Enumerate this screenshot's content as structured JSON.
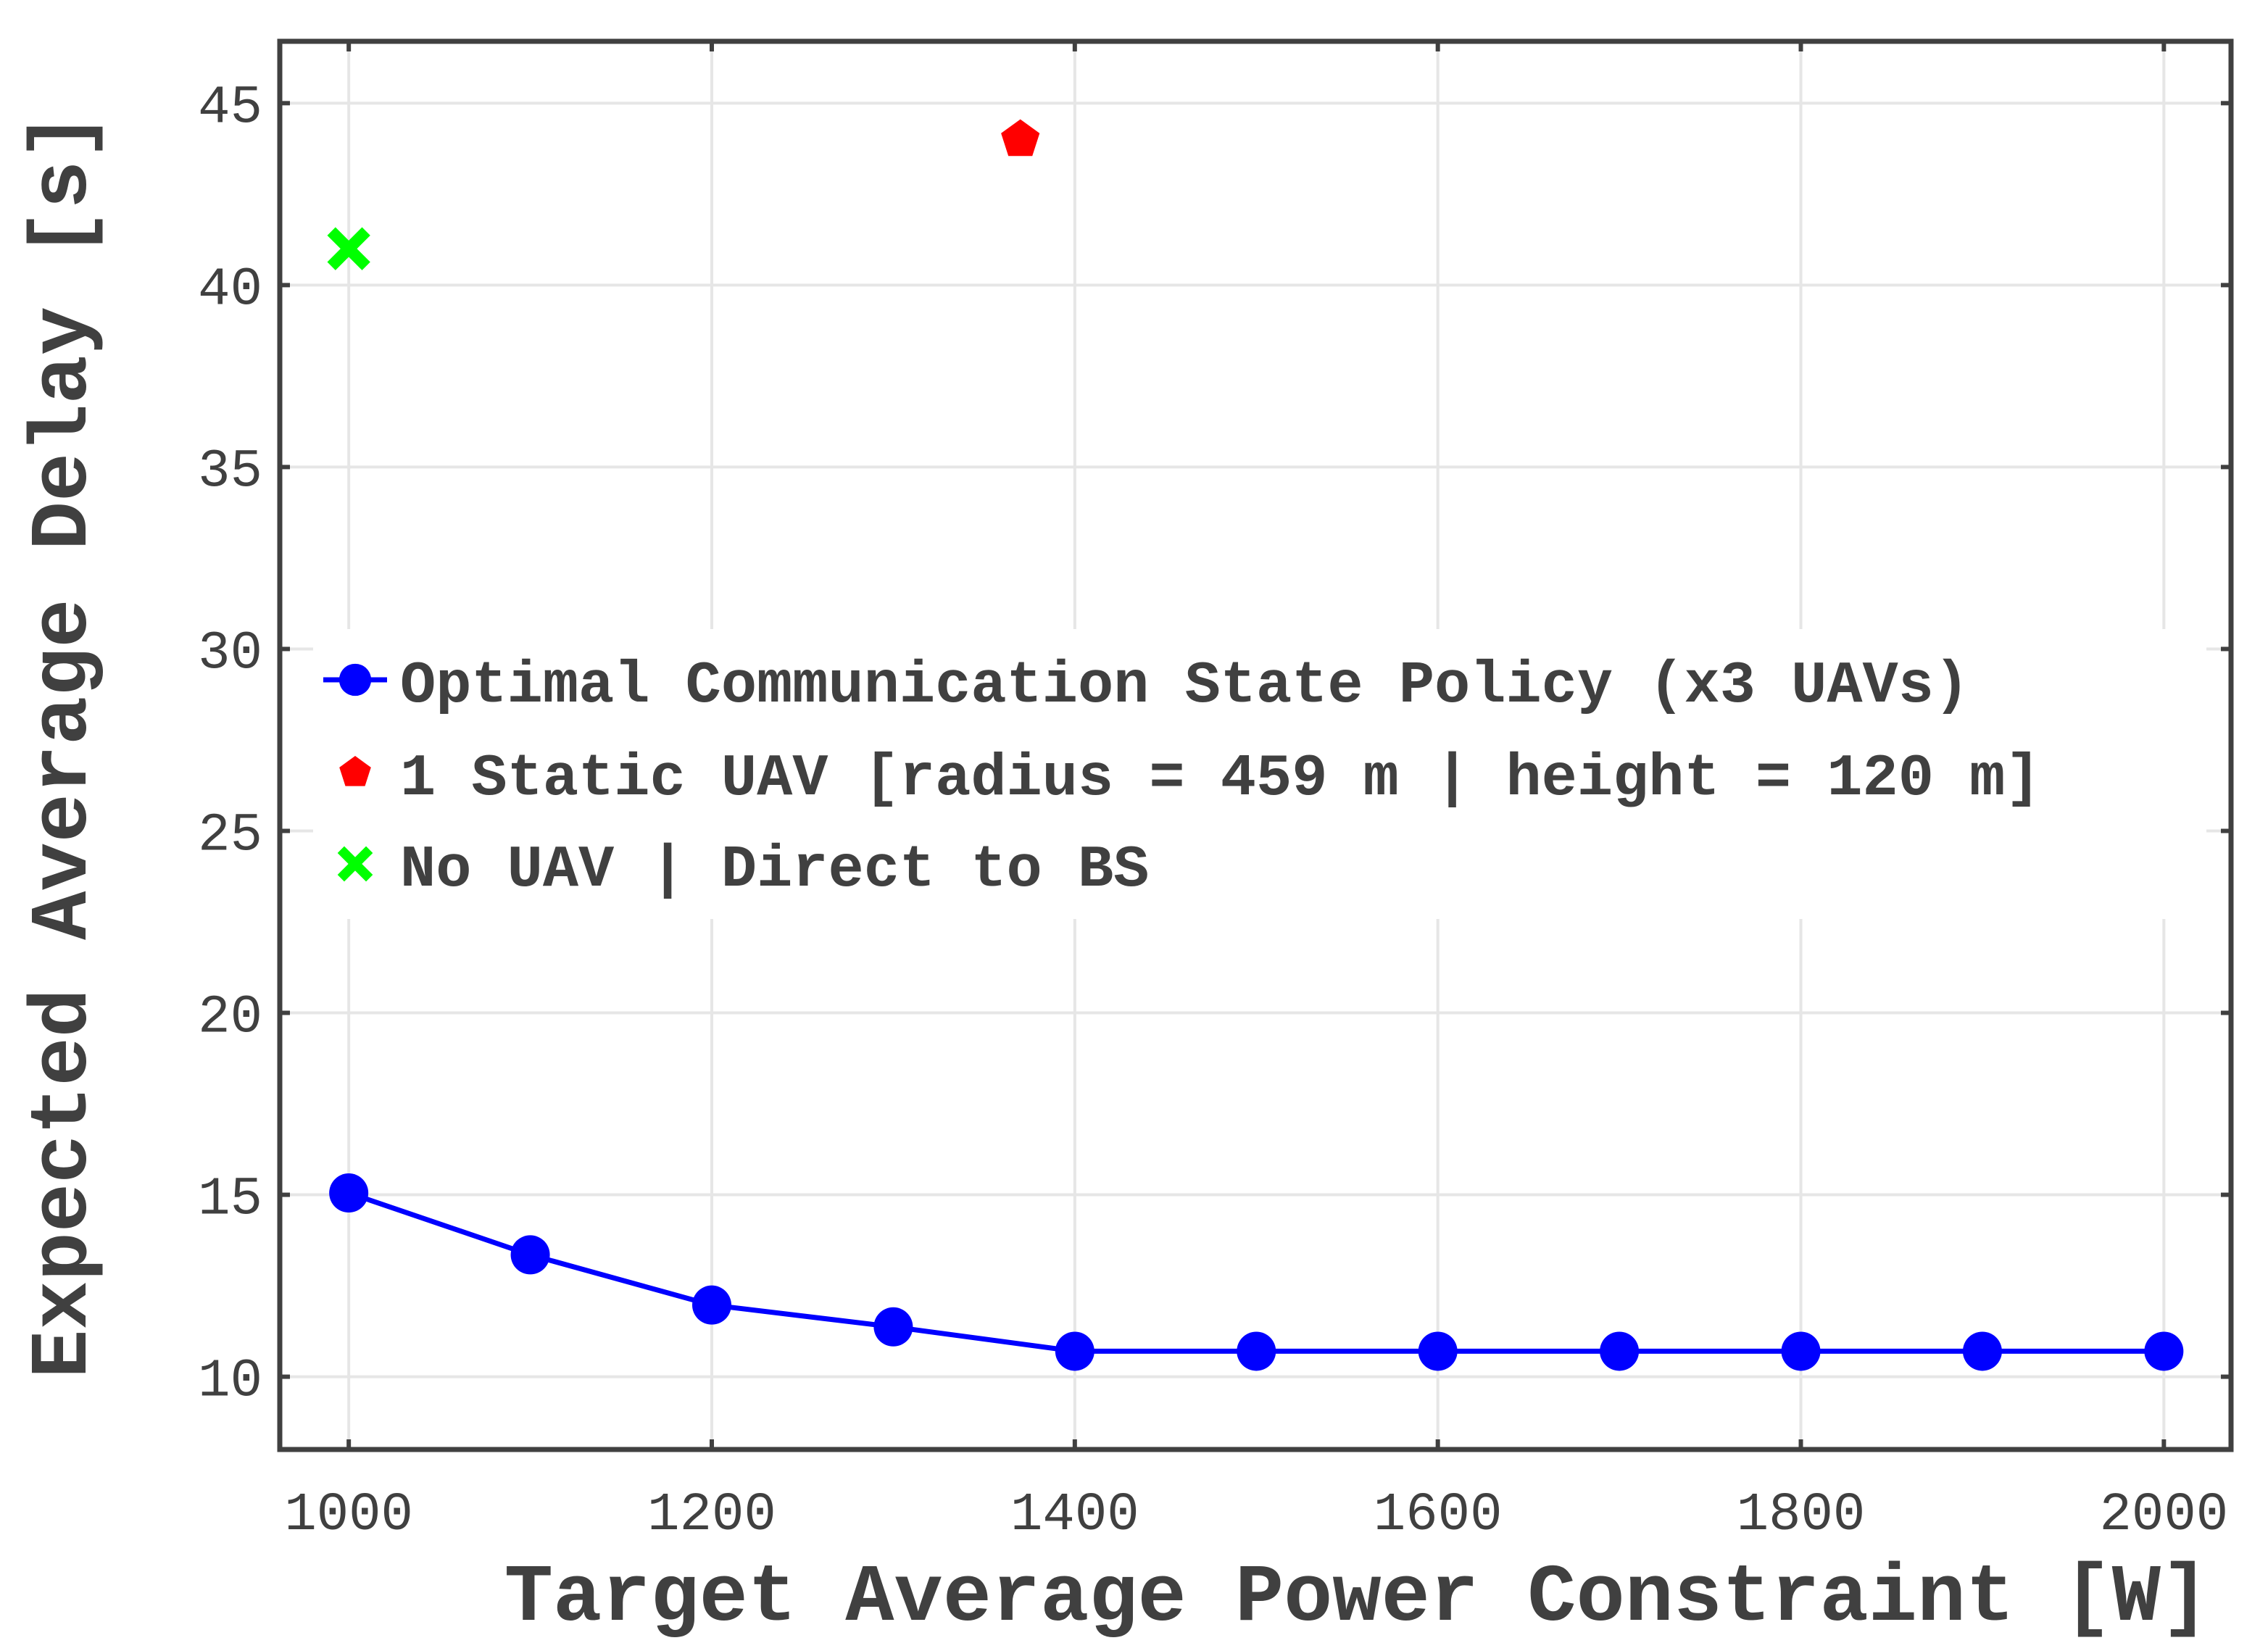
{
  "chart_data": {
    "type": "line",
    "xlabel": "Target Average Power Constraint [W]",
    "ylabel": "Expected Average Delay [s]",
    "xlim": [
      962,
      2037
    ],
    "ylim": [
      8,
      46.7
    ],
    "xticks": [
      1000,
      1200,
      1400,
      1600,
      1800,
      2000
    ],
    "yticks": [
      10,
      15,
      20,
      25,
      30,
      35,
      40,
      45
    ],
    "grid": true,
    "legend_position": "center-left",
    "series": [
      {
        "name": "Optimal Communication State Policy (x3 UAVs)",
        "color": "#0000ff",
        "marker": "circle",
        "line": true,
        "x": [
          1000,
          1100,
          1200,
          1300,
          1400,
          1500,
          1600,
          1700,
          1800,
          1900,
          2000
        ],
        "y": [
          15.05,
          13.35,
          11.97,
          11.37,
          10.7,
          10.7,
          10.7,
          10.7,
          10.7,
          10.7,
          10.7
        ]
      },
      {
        "name": "1 Static UAV [radius = 459 m | height = 120 m]",
        "color": "#ff0000",
        "marker": "pentagon",
        "line": false,
        "x": [
          1370
        ],
        "y": [
          44
        ]
      },
      {
        "name": "No UAV | Direct to BS",
        "color": "#00ff00",
        "marker": "x",
        "line": false,
        "x": [
          1000
        ],
        "y": [
          41
        ]
      }
    ]
  }
}
